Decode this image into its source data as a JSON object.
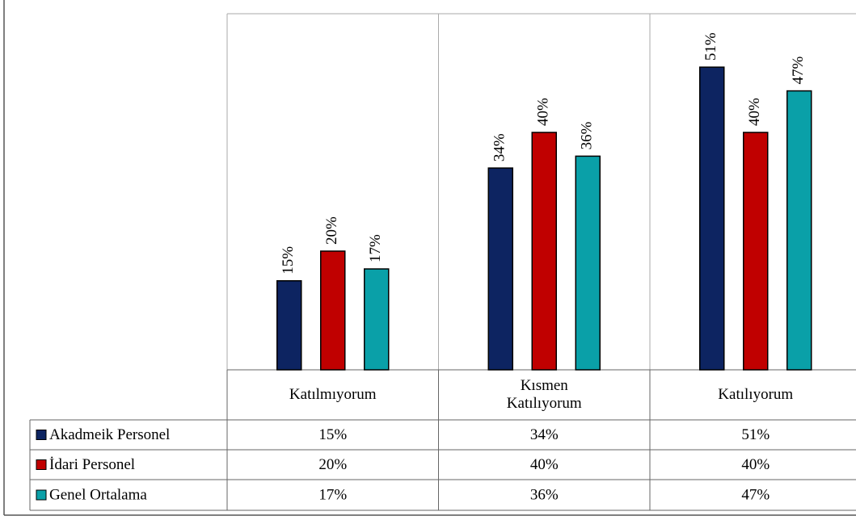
{
  "chart_data": {
    "type": "bar",
    "categories": [
      "Katılmıyorum",
      "Kısmen Katılıyorum",
      "Katılıyorum"
    ],
    "ylim": [
      0,
      60
    ],
    "series": [
      {
        "name": "Akadmeik Personel",
        "color": "#0d2461",
        "values": [
          15,
          34,
          51
        ],
        "value_labels": [
          "15%",
          "34%",
          "51%"
        ]
      },
      {
        "name": "İdari Personel",
        "color": "#c00000",
        "values": [
          20,
          40,
          40
        ],
        "value_labels": [
          "20%",
          "40%",
          "40%"
        ]
      },
      {
        "name": "Genel Ortalama",
        "color": "#0aa0a8",
        "values": [
          17,
          36,
          47
        ],
        "value_labels": [
          "17%",
          "36%",
          "47%"
        ]
      }
    ]
  }
}
